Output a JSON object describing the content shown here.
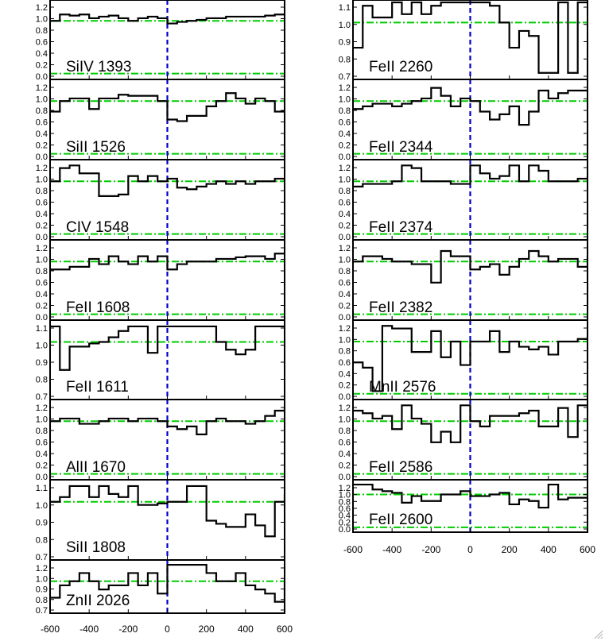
{
  "chart_data": {
    "type": "line",
    "x_ticks": [
      -600,
      -400,
      -200,
      0,
      200,
      400,
      600
    ],
    "x_tick_labels": [
      "-600",
      "-400",
      "-200",
      "0",
      "200",
      "400",
      "600"
    ],
    "xlim": [
      -600,
      600
    ],
    "reference_lines": {
      "zero_velocity": 0,
      "continuum": 1.0,
      "zero_flux": 0.0
    },
    "colors": {
      "spectrum": "#000000",
      "velocity_zero_line": "#0000cc",
      "level_lines": "#00cc00"
    },
    "panels": [
      {
        "label": "SiIV 1393",
        "ylim": [
          -0.05,
          1.35
        ],
        "y_tick_labels": [
          "1.2",
          "1.0",
          "0.8",
          "0.6",
          "0.4",
          "0.2",
          "0.0"
        ],
        "x": [
          -600,
          -550,
          -500,
          -450,
          -400,
          -350,
          -300,
          -250,
          -200,
          -150,
          -100,
          -50,
          0,
          50,
          100,
          150,
          200,
          250,
          300,
          350,
          400,
          450,
          500,
          550,
          600
        ],
        "y": [
          1.0,
          1.12,
          1.1,
          1.12,
          1.05,
          1.08,
          1.1,
          1.05,
          1.0,
          1.05,
          1.08,
          1.05,
          0.95,
          0.98,
          1.0,
          1.02,
          1.05,
          1.05,
          1.08,
          1.08,
          1.08,
          1.08,
          1.1,
          1.12,
          1.15
        ]
      },
      {
        "label": "SiII 1526",
        "ylim": [
          -0.05,
          1.35
        ],
        "y_tick_labels": [
          "1.2",
          "1.0",
          "0.8",
          "0.6",
          "0.4",
          "0.2",
          "0.0"
        ],
        "x": [
          -600,
          -550,
          -500,
          -450,
          -400,
          -350,
          -300,
          -250,
          -200,
          -150,
          -100,
          -50,
          0,
          50,
          100,
          150,
          200,
          250,
          300,
          350,
          400,
          450,
          500,
          550,
          600
        ],
        "y": [
          0.8,
          1.0,
          1.05,
          1.05,
          0.85,
          1.05,
          1.05,
          1.12,
          1.1,
          1.1,
          1.1,
          1.0,
          0.65,
          0.62,
          0.72,
          0.72,
          0.9,
          1.0,
          1.15,
          1.05,
          0.95,
          1.05,
          1.0,
          0.8,
          0.8
        ]
      },
      {
        "label": "CIV 1548",
        "ylim": [
          -0.05,
          1.35
        ],
        "y_tick_labels": [
          "1.2",
          "1.0",
          "0.8",
          "0.6",
          "0.4",
          "0.2",
          "0.0"
        ],
        "x": [
          -600,
          -550,
          -500,
          -450,
          -400,
          -350,
          -300,
          -250,
          -200,
          -150,
          -100,
          -50,
          0,
          50,
          100,
          150,
          200,
          250,
          300,
          350,
          400,
          450,
          500,
          550,
          600
        ],
        "y": [
          1.0,
          1.25,
          1.3,
          1.15,
          1.15,
          0.72,
          0.72,
          0.75,
          1.1,
          1.0,
          1.1,
          1.0,
          1.05,
          0.88,
          0.85,
          0.9,
          0.95,
          1.0,
          0.95,
          1.0,
          0.95,
          1.0,
          1.0,
          1.05,
          1.0
        ]
      },
      {
        "label": "FeII 1608",
        "ylim": [
          -0.05,
          1.35
        ],
        "y_tick_labels": [
          "1.2",
          "1.0",
          "0.8",
          "0.6",
          "0.4",
          "0.2",
          "0.0"
        ],
        "x": [
          -600,
          -550,
          -500,
          -450,
          -400,
          -350,
          -300,
          -250,
          -200,
          -150,
          -100,
          -50,
          0,
          50,
          100,
          150,
          200,
          250,
          300,
          350,
          400,
          450,
          500,
          550,
          600
        ],
        "y": [
          0.85,
          0.85,
          0.9,
          0.9,
          1.05,
          0.95,
          1.1,
          1.0,
          0.95,
          1.1,
          1.0,
          1.1,
          0.85,
          0.95,
          1.0,
          1.0,
          1.0,
          1.05,
          1.05,
          1.08,
          1.1,
          1.1,
          1.05,
          1.15,
          1.15
        ]
      },
      {
        "label": "FeII 1611",
        "ylim": [
          0.65,
          1.12
        ],
        "y_tick_labels": [
          "1.1",
          "1.0",
          "0.9",
          "0.8",
          "0.7"
        ],
        "x": [
          -600,
          -550,
          -500,
          -450,
          -400,
          -350,
          -300,
          -250,
          -200,
          -150,
          -100,
          -50,
          0,
          50,
          100,
          150,
          200,
          250,
          300,
          350,
          400,
          450,
          500,
          550,
          600
        ],
        "y": [
          1.1,
          0.82,
          0.97,
          0.97,
          0.99,
          1.0,
          1.03,
          1.07,
          1.1,
          1.1,
          0.93,
          1.1,
          1.1,
          1.1,
          1.1,
          1.1,
          1.1,
          1.0,
          0.95,
          0.92,
          0.95,
          1.1,
          1.1,
          1.1,
          1.1
        ]
      },
      {
        "label": "AlII 1670",
        "ylim": [
          -0.05,
          1.35
        ],
        "y_tick_labels": [
          "1.2",
          "1.0",
          "0.8",
          "0.6",
          "0.4",
          "0.2",
          "0.0"
        ],
        "x": [
          -600,
          -550,
          -500,
          -450,
          -400,
          -350,
          -300,
          -250,
          -200,
          -150,
          -100,
          -50,
          0,
          50,
          100,
          150,
          200,
          250,
          300,
          350,
          400,
          450,
          500,
          550,
          600
        ],
        "y": [
          1.0,
          1.05,
          1.05,
          0.95,
          0.95,
          1.0,
          1.05,
          1.05,
          1.0,
          1.05,
          1.05,
          1.0,
          0.9,
          0.85,
          0.9,
          0.75,
          1.0,
          1.05,
          1.0,
          1.0,
          0.95,
          1.0,
          1.1,
          1.2,
          1.25
        ]
      },
      {
        "label": "SiII 1808",
        "ylim": [
          0.65,
          1.12
        ],
        "y_tick_labels": [
          "1.1",
          "1.0",
          "0.9",
          "0.8",
          "0.7"
        ],
        "x": [
          -600,
          -550,
          -500,
          -450,
          -400,
          -350,
          -300,
          -250,
          -200,
          -150,
          -100,
          -50,
          0,
          50,
          100,
          150,
          200,
          250,
          300,
          350,
          400,
          450,
          500,
          550,
          600
        ],
        "y": [
          1.0,
          1.03,
          1.1,
          1.1,
          1.03,
          1.1,
          1.05,
          1.03,
          1.1,
          0.98,
          0.98,
          0.99,
          1.0,
          1.0,
          1.1,
          1.1,
          0.88,
          0.86,
          0.84,
          0.84,
          0.92,
          0.85,
          0.78,
          1.0,
          1.05
        ]
      },
      {
        "label": "ZnII 2026",
        "ylim": [
          0.65,
          1.22
        ],
        "y_tick_labels": [
          "1.2",
          "1.0",
          "0.9",
          "0.8",
          "0.7"
        ],
        "x": [
          -600,
          -550,
          -500,
          -450,
          -400,
          -350,
          -300,
          -250,
          -200,
          -150,
          -100,
          -50,
          0,
          50,
          100,
          150,
          200,
          250,
          300,
          350,
          400,
          450,
          500,
          550,
          600
        ],
        "y": [
          0.8,
          0.95,
          1.0,
          1.1,
          1.0,
          0.9,
          0.95,
          0.95,
          1.1,
          0.95,
          1.1,
          0.85,
          1.2,
          1.2,
          1.2,
          1.2,
          1.1,
          1.0,
          1.0,
          1.1,
          0.95,
          0.9,
          0.85,
          0.75,
          1.0
        ]
      },
      {
        "label": "FeII 2260",
        "ylim": [
          0.68,
          1.12
        ],
        "y_tick_labels": [
          "1.1",
          "1.0",
          "0.9",
          "0.8",
          "0.7"
        ],
        "x": [
          -600,
          -550,
          -500,
          -450,
          -400,
          -350,
          -300,
          -250,
          -200,
          -150,
          -100,
          -50,
          0,
          50,
          100,
          150,
          200,
          250,
          300,
          350,
          400,
          450,
          500,
          550,
          600
        ],
        "y": [
          0.85,
          1.1,
          1.03,
          1.03,
          1.12,
          1.05,
          1.12,
          1.05,
          1.1,
          1.12,
          1.12,
          1.12,
          1.12,
          1.12,
          1.1,
          1.0,
          0.85,
          0.95,
          0.92,
          0.7,
          0.7,
          1.12,
          0.7,
          1.12,
          1.12
        ]
      },
      {
        "label": "FeII 2344",
        "ylim": [
          -0.05,
          1.35
        ],
        "y_tick_labels": [
          "1.2",
          "1.0",
          "0.8",
          "0.6",
          "0.4",
          "0.2",
          "0.0"
        ],
        "x": [
          -600,
          -550,
          -500,
          -450,
          -400,
          -350,
          -300,
          -250,
          -200,
          -150,
          -100,
          -50,
          0,
          50,
          100,
          150,
          200,
          250,
          300,
          350,
          400,
          450,
          500,
          550,
          600
        ],
        "y": [
          0.85,
          0.9,
          0.95,
          0.95,
          0.9,
          0.95,
          1.0,
          1.05,
          1.25,
          1.1,
          0.9,
          1.05,
          1.0,
          0.8,
          0.65,
          0.75,
          0.9,
          0.55,
          0.8,
          1.2,
          1.05,
          1.15,
          1.2,
          1.2,
          1.2
        ]
      },
      {
        "label": "FeII 2374",
        "ylim": [
          -0.05,
          1.35
        ],
        "y_tick_labels": [
          "1.2",
          "1.0",
          "0.8",
          "0.6",
          "0.4",
          "0.2",
          "0.0"
        ],
        "x": [
          -600,
          -550,
          -500,
          -450,
          -400,
          -350,
          -300,
          -250,
          -200,
          -150,
          -100,
          -50,
          0,
          50,
          100,
          150,
          200,
          250,
          300,
          350,
          400,
          450,
          500,
          550,
          600
        ],
        "y": [
          0.9,
          0.95,
          0.95,
          0.95,
          1.0,
          1.3,
          1.25,
          1.0,
          1.0,
          1.0,
          0.95,
          0.95,
          1.3,
          1.15,
          1.05,
          1.1,
          1.3,
          1.0,
          1.3,
          1.2,
          1.0,
          1.0,
          1.0,
          1.05,
          1.1
        ]
      },
      {
        "label": "FeII 2382",
        "ylim": [
          -0.05,
          1.35
        ],
        "y_tick_labels": [
          "1.2",
          "1.0",
          "0.8",
          "0.6",
          "0.4",
          "0.2",
          "0.0"
        ],
        "x": [
          -600,
          -550,
          -500,
          -450,
          -400,
          -350,
          -300,
          -250,
          -200,
          -150,
          -100,
          -50,
          0,
          50,
          100,
          150,
          200,
          250,
          300,
          350,
          400,
          450,
          500,
          550,
          600
        ],
        "y": [
          1.0,
          1.1,
          1.1,
          1.05,
          1.0,
          1.0,
          0.95,
          0.95,
          0.6,
          1.2,
          1.1,
          1.1,
          0.85,
          0.9,
          0.95,
          0.75,
          0.9,
          1.05,
          1.2,
          1.1,
          1.0,
          1.05,
          1.05,
          0.9,
          1.1
        ]
      },
      {
        "label": "MnII 2576",
        "ylim": [
          -0.05,
          1.35
        ],
        "y_tick_labels": [
          "1.2",
          "1.0",
          "0.8",
          "0.6",
          "0.4",
          "0.2",
          "0.0"
        ],
        "x": [
          -600,
          -550,
          -500,
          -450,
          -400,
          -350,
          -300,
          -250,
          -200,
          -150,
          -100,
          -50,
          0,
          50,
          100,
          150,
          200,
          250,
          300,
          350,
          400,
          450,
          500,
          550,
          600
        ],
        "y": [
          0.6,
          0.5,
          0.05,
          1.3,
          1.25,
          1.25,
          0.8,
          0.8,
          1.2,
          0.7,
          1.0,
          0.55,
          1.0,
          1.0,
          1.2,
          0.8,
          1.0,
          0.9,
          0.85,
          0.9,
          0.75,
          1.0,
          1.0,
          1.05,
          1.1
        ]
      },
      {
        "label": "FeII 2586",
        "ylim": [
          -0.05,
          1.35
        ],
        "y_tick_labels": [
          "1.2",
          "1.0",
          "0.8",
          "0.6",
          "0.4",
          "0.2",
          "0.0"
        ],
        "x": [
          -600,
          -550,
          -500,
          -450,
          -400,
          -350,
          -300,
          -250,
          -200,
          -150,
          -100,
          -50,
          0,
          50,
          100,
          150,
          200,
          250,
          300,
          350,
          400,
          450,
          500,
          550,
          600
        ],
        "y": [
          1.2,
          1.15,
          1.05,
          1.1,
          0.85,
          1.3,
          1.05,
          0.95,
          0.6,
          0.8,
          0.6,
          1.3,
          1.0,
          0.9,
          1.1,
          1.1,
          1.1,
          1.15,
          1.2,
          0.9,
          0.9,
          1.25,
          0.7,
          1.3,
          1.3
        ]
      },
      {
        "label": "FeII 2600",
        "ylim": [
          -0.05,
          1.35
        ],
        "y_tick_labels": [
          "1.2",
          "1.0",
          "0.8",
          "0.6",
          "0.4",
          "0.2",
          "0.0"
        ],
        "x": [
          -600,
          -550,
          -500,
          -450,
          -400,
          -350,
          -300,
          -250,
          -200,
          -150,
          -100,
          -50,
          0,
          50,
          100,
          150,
          200,
          250,
          300,
          350,
          400,
          450,
          500,
          550,
          600
        ],
        "y": [
          1.3,
          1.3,
          1.15,
          1.1,
          1.05,
          0.75,
          0.95,
          0.8,
          0.8,
          1.0,
          1.0,
          1.1,
          0.95,
          0.95,
          1.0,
          1.05,
          0.7,
          0.85,
          0.8,
          0.6,
          1.3,
          0.85,
          0.9,
          0.9,
          0.9
        ]
      }
    ]
  }
}
